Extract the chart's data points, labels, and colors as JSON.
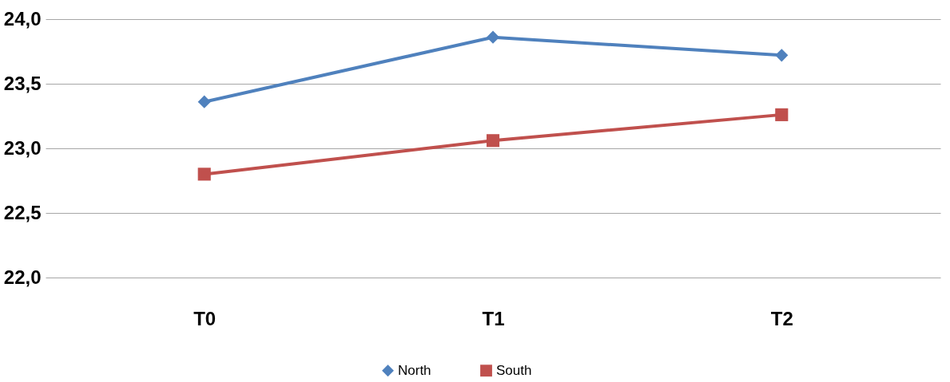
{
  "chart_data": {
    "type": "line",
    "categories": [
      "T0",
      "T1",
      "T2"
    ],
    "series": [
      {
        "name": "North",
        "color": "#4f81bd",
        "marker": "diamond",
        "values": [
          23.36,
          23.86,
          23.72
        ]
      },
      {
        "name": "South",
        "color": "#c0504d",
        "marker": "square",
        "values": [
          22.8,
          23.06,
          23.26
        ]
      }
    ],
    "ylim": [
      22,
      24
    ],
    "yticks": [
      {
        "value": 22,
        "label": "22,0"
      },
      {
        "value": 22.5,
        "label": "22,5"
      },
      {
        "value": 23,
        "label": "23,0"
      },
      {
        "value": 23.5,
        "label": "23,5"
      },
      {
        "value": 24,
        "label": "24,0"
      }
    ],
    "grid": "y",
    "legend": "bottom",
    "line_style": "solid"
  }
}
